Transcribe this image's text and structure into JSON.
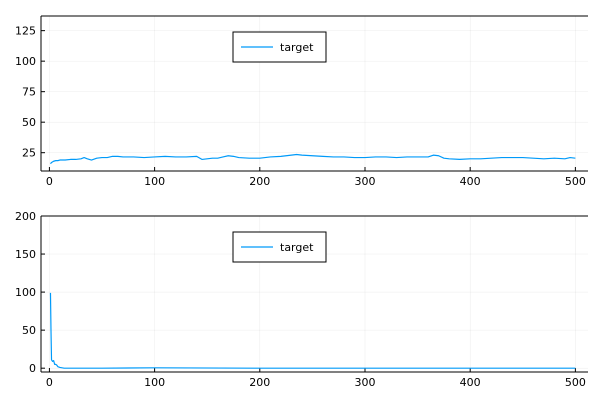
{
  "chart_data": [
    {
      "type": "line",
      "title": "",
      "xlabel": "",
      "ylabel": "",
      "xlim": [
        -8,
        512
      ],
      "ylim": [
        10,
        137
      ],
      "x_ticks": [
        0,
        100,
        200,
        300,
        400,
        500
      ],
      "y_ticks": [
        25,
        50,
        75,
        100,
        125
      ],
      "grid": true,
      "legend_position": "top-center",
      "series": [
        {
          "name": "target",
          "color": "#009af9",
          "x": [
            1,
            2,
            4,
            6,
            8,
            10,
            15,
            20,
            25,
            30,
            33,
            36,
            40,
            45,
            50,
            55,
            60,
            65,
            70,
            80,
            90,
            100,
            110,
            120,
            130,
            140,
            145,
            150,
            155,
            160,
            165,
            170,
            175,
            180,
            190,
            200,
            210,
            220,
            230,
            235,
            240,
            250,
            260,
            270,
            280,
            290,
            300,
            310,
            320,
            330,
            340,
            350,
            360,
            365,
            370,
            375,
            380,
            390,
            400,
            410,
            420,
            430,
            440,
            450,
            460,
            470,
            480,
            490,
            495,
            500
          ],
          "y": [
            16,
            17,
            18,
            18.5,
            18.5,
            19,
            19,
            19.5,
            19.5,
            20,
            21,
            20,
            19,
            20.5,
            21,
            21,
            22,
            22,
            21.5,
            21.5,
            21,
            21.5,
            22,
            21.5,
            21.5,
            22,
            19.5,
            20,
            20.5,
            20.5,
            21.5,
            22.5,
            22,
            21,
            20.5,
            20.5,
            21.5,
            22,
            23,
            23.5,
            23,
            22.5,
            22,
            21.5,
            21.5,
            21,
            21,
            21.5,
            21.5,
            21,
            21.5,
            21.5,
            21.5,
            23,
            22.5,
            20.5,
            20,
            19.5,
            20,
            20,
            20.5,
            21,
            21,
            21,
            20.5,
            20,
            20.5,
            20,
            21,
            20.5
          ]
        }
      ]
    },
    {
      "type": "line",
      "title": "",
      "xlabel": "",
      "ylabel": "",
      "xlim": [
        -8,
        512
      ],
      "ylim": [
        -5,
        200
      ],
      "x_ticks": [
        0,
        100,
        200,
        300,
        400,
        500
      ],
      "y_ticks": [
        0,
        50,
        100,
        150,
        200
      ],
      "grid": true,
      "legend_position": "top-center",
      "series": [
        {
          "name": "target",
          "color": "#009af9",
          "x": [
            1,
            1.5,
            2,
            3,
            4,
            5,
            6,
            7,
            8,
            10,
            12,
            14,
            20,
            30,
            50,
            100,
            200,
            300,
            400,
            500
          ],
          "y": [
            99,
            50,
            11,
            9,
            10,
            5,
            5,
            4,
            2,
            1,
            0.5,
            0,
            0,
            0,
            0,
            0.5,
            0,
            0,
            0,
            0
          ]
        }
      ]
    }
  ]
}
